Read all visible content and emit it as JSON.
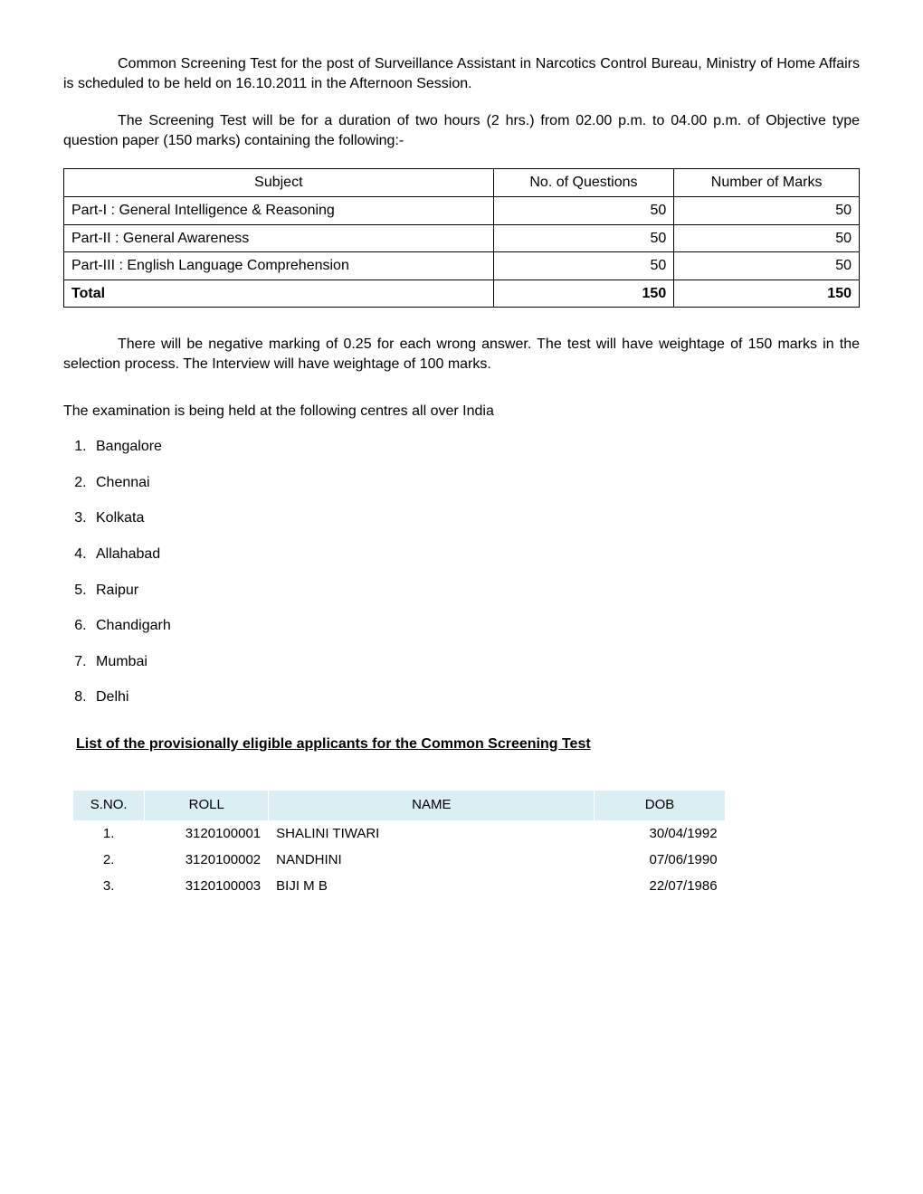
{
  "paragraph1": "Common Screening Test for the post of Surveillance Assistant in Narcotics Control Bureau, Ministry of Home Affairs is scheduled to be held on 16.10.2011 in the Afternoon Session.",
  "paragraph2": "The Screening Test will be for a duration of two hours (2 hrs.) from 02.00 p.m. to 04.00 p.m. of Objective type question paper (150 marks) containing the following:-",
  "subjectTable": {
    "headers": {
      "subject": "Subject",
      "questions": "No. of Questions",
      "marks": "Number of Marks"
    },
    "rows": [
      {
        "subject": "Part-I : General Intelligence & Reasoning",
        "questions": "50",
        "marks": "50"
      },
      {
        "subject": "Part-II : General Awareness",
        "questions": "50",
        "marks": "50"
      },
      {
        "subject": "Part-III : English Language Comprehension",
        "questions": "50",
        "marks": "50"
      }
    ],
    "total": {
      "label": "Total",
      "questions": "150",
      "marks": "150"
    }
  },
  "paragraph3": "There will be negative marking of 0.25 for each wrong answer. The test will have weightage of 150 marks in the selection process. The Interview will have weightage of 100 marks.",
  "centresIntro": "The examination is being held at the following centres all over India",
  "centres": [
    "Bangalore",
    "Chennai",
    "Kolkata",
    "Allahabad",
    "Raipur",
    "Chandigarh",
    "Mumbai",
    "Delhi"
  ],
  "eligibleHeading": "List of the provisionally eligible applicants for the Common Screening Test",
  "appTable": {
    "headers": {
      "sno": "S.NO.",
      "roll": "ROLL",
      "name": "NAME",
      "dob": "DOB"
    },
    "rows": [
      {
        "sno": "1.",
        "roll": "3120100001",
        "name": "SHALINI TIWARI",
        "dob": "30/04/1992"
      },
      {
        "sno": "2.",
        "roll": "3120100002",
        "name": "NANDHINI",
        "dob": "07/06/1990"
      },
      {
        "sno": "3.",
        "roll": "3120100003",
        "name": "BIJI M B",
        "dob": "22/07/1986"
      }
    ]
  },
  "colors": {
    "appHeaderBg": "#dbeef3",
    "tableBorder": "#000000",
    "appBorder": "#ffffff",
    "text": "#000000",
    "background": "#ffffff"
  }
}
